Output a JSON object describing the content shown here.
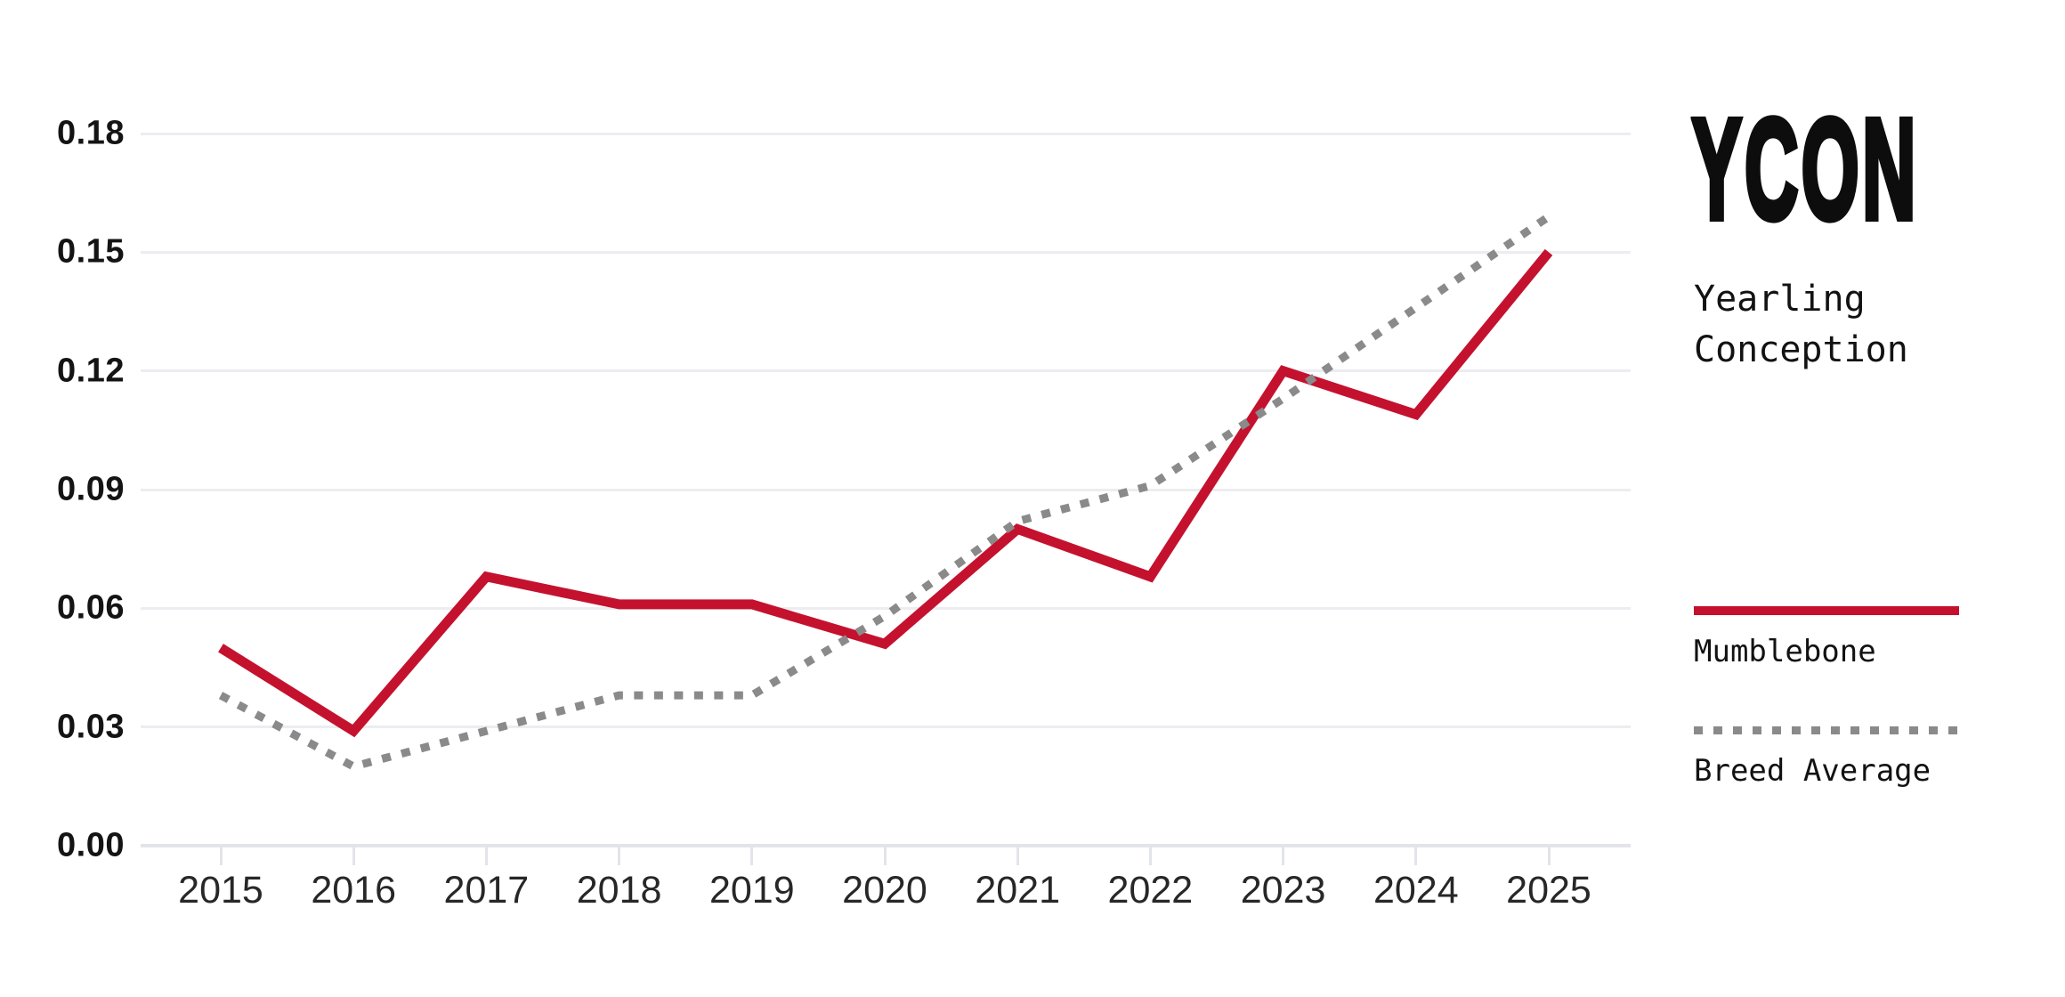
{
  "panel": {
    "logo": "YCON",
    "subtitle_line1": "Yearling",
    "subtitle_line2": "Conception"
  },
  "legend": [
    {
      "label": "Mumblebone",
      "style": "solid",
      "color": "#C4122E"
    },
    {
      "label": "Breed Average",
      "style": "dotted",
      "color": "#8A8A8A"
    }
  ],
  "colors": {
    "mumblebone_red": "#C4122E",
    "breed_avg_gray": "#8A8A8A",
    "gridline": "#ECEDF1",
    "axis": "#E2E4E9",
    "text_dark": "#141414"
  },
  "chart_data": {
    "type": "line",
    "x": [
      2015,
      2016,
      2017,
      2018,
      2019,
      2020,
      2021,
      2022,
      2023,
      2024,
      2025
    ],
    "x_labels": [
      "2015",
      "2016",
      "2017",
      "2018",
      "2019",
      "2020",
      "2021",
      "2022",
      "2023",
      "2024",
      "2025"
    ],
    "series": [
      {
        "name": "Mumblebone",
        "color": "#C4122E",
        "style": "solid",
        "values": [
          0.05,
          0.029,
          0.068,
          0.061,
          0.061,
          0.051,
          0.08,
          0.068,
          0.12,
          0.109,
          0.15
        ]
      },
      {
        "name": "Breed Average",
        "color": "#8A8A8A",
        "style": "dotted",
        "values": [
          0.038,
          0.02,
          0.029,
          0.038,
          0.038,
          0.058,
          0.082,
          0.091,
          0.113,
          0.136,
          0.159
        ]
      }
    ],
    "title": "YCON — Yearling Conception",
    "xlabel": "",
    "ylabel": "",
    "ylim": [
      0,
      0.18
    ],
    "yticks": [
      0.0,
      0.03,
      0.06,
      0.09,
      0.12,
      0.15,
      0.18
    ],
    "ytick_labels": [
      "0.00",
      "0.03",
      "0.06",
      "0.09",
      "0.12",
      "0.15",
      "0.18"
    ],
    "grid": true,
    "legend_position": "right"
  }
}
